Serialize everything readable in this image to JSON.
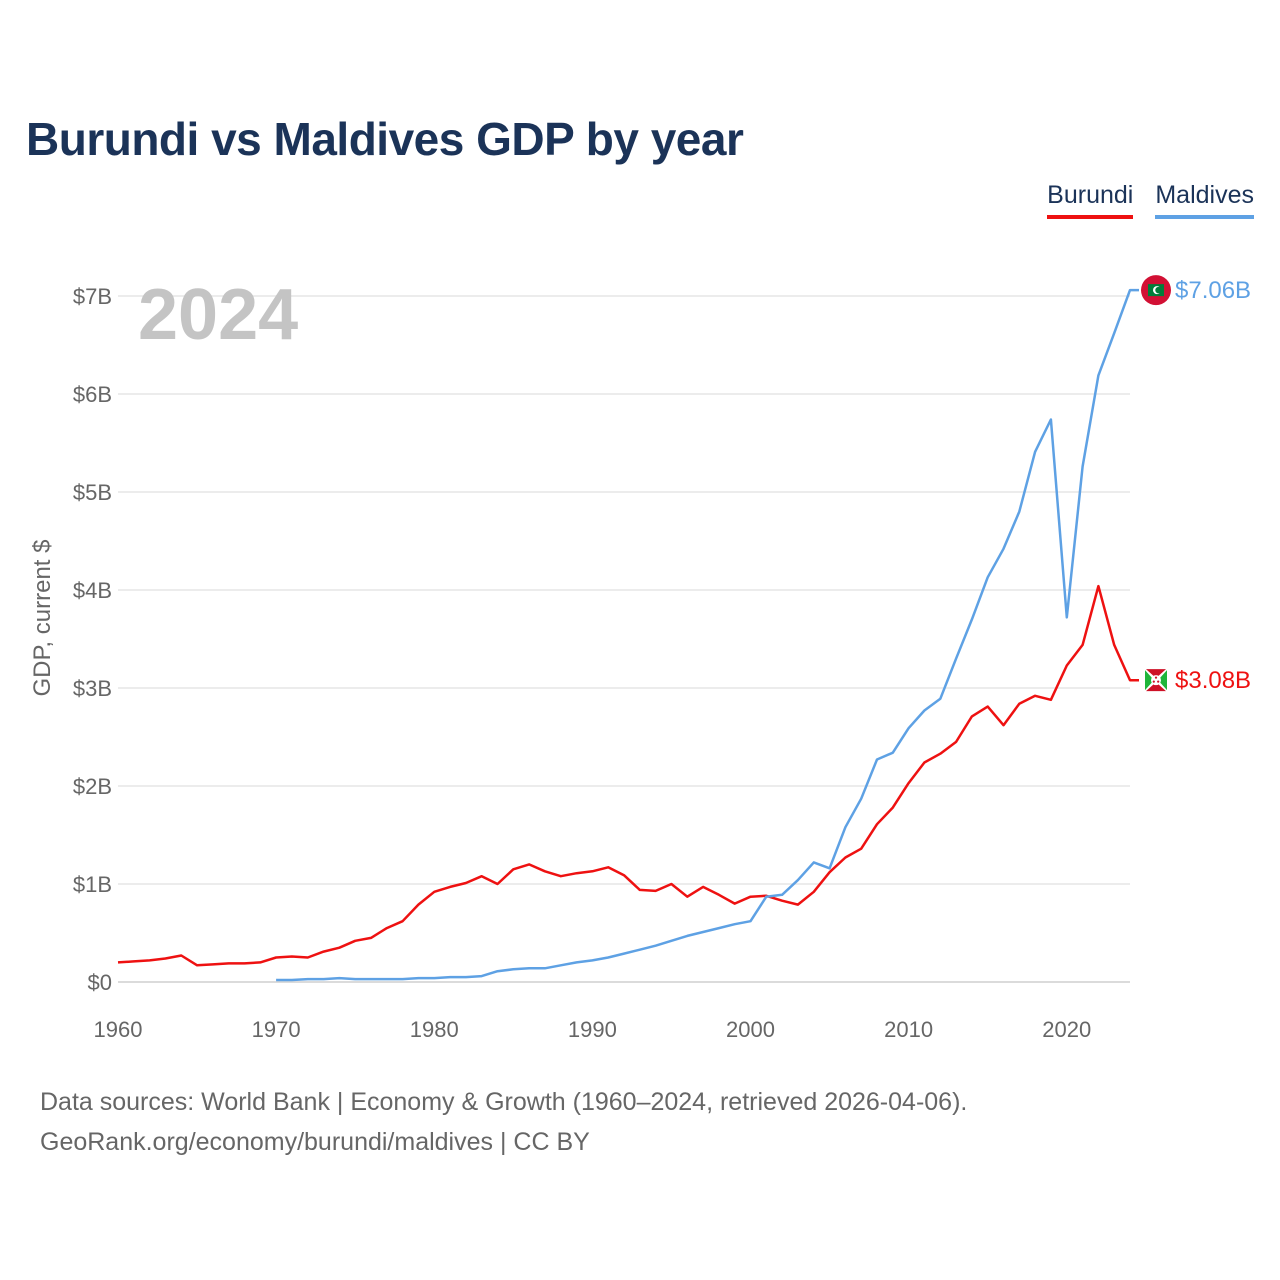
{
  "title": "Burundi vs Maldives GDP by year",
  "legend": {
    "burundi": "Burundi",
    "maldives": "Maldives"
  },
  "source_line1": "Data sources: World Bank | Economy & Growth (1960–2024, retrieved 2026-04-06).",
  "source_line2": "GeoRank.org/economy/burundi/maldives | CC BY",
  "chart_data": {
    "type": "line",
    "title": "Burundi vs Maldives GDP by year",
    "year_label": "2024",
    "ylabel": "GDP, current $",
    "xlabel": "",
    "xlim": [
      1960,
      2024
    ],
    "ylim": [
      0,
      7
    ],
    "x_ticks": [
      1960,
      1970,
      1980,
      1990,
      2000,
      2010,
      2020
    ],
    "y_ticks": [
      {
        "value": 0,
        "label": "$0"
      },
      {
        "value": 1,
        "label": "$1B"
      },
      {
        "value": 2,
        "label": "$2B"
      },
      {
        "value": 3,
        "label": "$3B"
      },
      {
        "value": 4,
        "label": "$4B"
      },
      {
        "value": 5,
        "label": "$5B"
      },
      {
        "value": 6,
        "label": "$6B"
      },
      {
        "value": 7,
        "label": "$7B"
      }
    ],
    "grid": true,
    "legend_position": "top-right",
    "colors": {
      "Burundi": "#ee1111",
      "Maldives": "#5ea1e4"
    },
    "series": [
      {
        "name": "Burundi",
        "color": "#ee1111",
        "end_label": "$3.08B",
        "x": [
          1960,
          1961,
          1962,
          1963,
          1964,
          1965,
          1966,
          1967,
          1968,
          1969,
          1970,
          1971,
          1972,
          1973,
          1974,
          1975,
          1976,
          1977,
          1978,
          1979,
          1980,
          1981,
          1982,
          1983,
          1984,
          1985,
          1986,
          1987,
          1988,
          1989,
          1990,
          1991,
          1992,
          1993,
          1994,
          1995,
          1996,
          1997,
          1998,
          1999,
          2000,
          2001,
          2002,
          2003,
          2004,
          2005,
          2006,
          2007,
          2008,
          2009,
          2010,
          2011,
          2012,
          2013,
          2014,
          2015,
          2016,
          2017,
          2018,
          2019,
          2020,
          2021,
          2022,
          2023,
          2024
        ],
        "values": [
          0.2,
          0.21,
          0.22,
          0.24,
          0.27,
          0.17,
          0.18,
          0.19,
          0.19,
          0.2,
          0.25,
          0.26,
          0.25,
          0.31,
          0.35,
          0.42,
          0.45,
          0.55,
          0.62,
          0.79,
          0.92,
          0.97,
          1.01,
          1.08,
          1.0,
          1.15,
          1.2,
          1.13,
          1.08,
          1.11,
          1.13,
          1.17,
          1.09,
          0.94,
          0.93,
          1.0,
          0.87,
          0.97,
          0.89,
          0.8,
          0.87,
          0.88,
          0.83,
          0.79,
          0.92,
          1.12,
          1.27,
          1.36,
          1.61,
          1.78,
          2.03,
          2.24,
          2.33,
          2.45,
          2.71,
          2.81,
          2.62,
          2.84,
          2.92,
          2.88,
          3.23,
          3.44,
          4.04,
          3.44,
          3.08
        ]
      },
      {
        "name": "Maldives",
        "color": "#5ea1e4",
        "end_label": "$7.06B",
        "x": [
          1970,
          1971,
          1972,
          1973,
          1974,
          1975,
          1976,
          1977,
          1978,
          1979,
          1980,
          1981,
          1982,
          1983,
          1984,
          1985,
          1986,
          1987,
          1988,
          1989,
          1990,
          1991,
          1992,
          1993,
          1994,
          1995,
          1996,
          1997,
          1998,
          1999,
          2000,
          2001,
          2002,
          2003,
          2004,
          2005,
          2006,
          2007,
          2008,
          2009,
          2010,
          2011,
          2012,
          2013,
          2014,
          2015,
          2016,
          2017,
          2018,
          2019,
          2020,
          2021,
          2022,
          2023,
          2024
        ],
        "values": [
          0.02,
          0.02,
          0.03,
          0.03,
          0.04,
          0.03,
          0.03,
          0.03,
          0.03,
          0.04,
          0.04,
          0.05,
          0.05,
          0.06,
          0.11,
          0.13,
          0.14,
          0.14,
          0.17,
          0.2,
          0.22,
          0.25,
          0.29,
          0.33,
          0.37,
          0.42,
          0.47,
          0.51,
          0.55,
          0.59,
          0.62,
          0.87,
          0.89,
          1.04,
          1.22,
          1.16,
          1.58,
          1.87,
          2.27,
          2.34,
          2.59,
          2.77,
          2.89,
          3.3,
          3.7,
          4.13,
          4.42,
          4.8,
          5.41,
          5.74,
          3.72,
          5.26,
          6.19,
          6.62,
          7.06
        ]
      }
    ]
  }
}
